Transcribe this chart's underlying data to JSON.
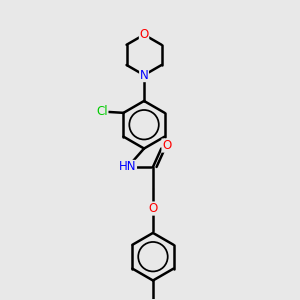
{
  "background_color": "#e8e8e8",
  "atom_colors": {
    "C": "#000000",
    "N": "#0000ff",
    "O": "#ff0000",
    "Cl": "#00cc00",
    "H": "#0000ff"
  },
  "bond_color": "#000000",
  "bond_width": 1.8,
  "fig_width": 3.0,
  "fig_height": 3.0,
  "dpi": 100
}
